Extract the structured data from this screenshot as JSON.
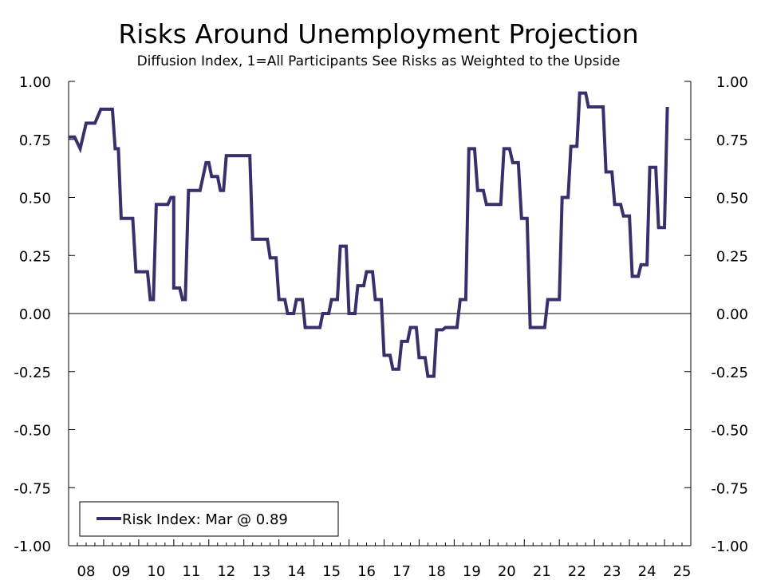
{
  "chart_data": {
    "type": "line",
    "title": "Risks Around Unemployment Projection",
    "subtitle": "Diffusion Index, 1=All Participants See Risks as Weighted to the Upside",
    "xlabel": "",
    "ylabel": "",
    "xlim": [
      2008,
      2025.75
    ],
    "ylim": [
      -1.0,
      1.0
    ],
    "y_ticks": [
      1.0,
      0.75,
      0.5,
      0.25,
      0.0,
      -0.25,
      -0.5,
      -0.75,
      -1.0
    ],
    "y_tick_labels": [
      "1.00",
      "0.75",
      "0.50",
      "0.25",
      "0.00",
      "-0.25",
      "-0.50",
      "-0.75",
      "-1.00"
    ],
    "x_tick_years": [
      2008,
      2009,
      2010,
      2011,
      2012,
      2013,
      2014,
      2015,
      2016,
      2017,
      2018,
      2019,
      2020,
      2021,
      2022,
      2023,
      2024,
      2025
    ],
    "x_tick_labels": [
      "08",
      "09",
      "10",
      "11",
      "12",
      "13",
      "14",
      "15",
      "16",
      "17",
      "18",
      "19",
      "20",
      "21",
      "22",
      "23",
      "24",
      "25"
    ],
    "grid": false,
    "zero_line": true,
    "legend": {
      "position": "bottom-left",
      "label": "Risk Index: Mar @ 0.89"
    },
    "series": [
      {
        "name": "Risk Index",
        "color": "#37306b",
        "points": [
          [
            2008.0,
            0.76
          ],
          [
            2008.17,
            0.76
          ],
          [
            2008.33,
            0.71
          ],
          [
            2008.5,
            0.82
          ],
          [
            2008.75,
            0.82
          ],
          [
            2008.92,
            0.88
          ],
          [
            2009.25,
            0.88
          ],
          [
            2009.33,
            0.71
          ],
          [
            2009.42,
            0.71
          ],
          [
            2009.5,
            0.41
          ],
          [
            2009.83,
            0.41
          ],
          [
            2009.92,
            0.18
          ],
          [
            2010.25,
            0.18
          ],
          [
            2010.33,
            0.06
          ],
          [
            2010.42,
            0.06
          ],
          [
            2010.5,
            0.47
          ],
          [
            2010.83,
            0.47
          ],
          [
            2010.92,
            0.5
          ],
          [
            2011.0,
            0.5
          ],
          [
            2011.0,
            0.11
          ],
          [
            2011.17,
            0.11
          ],
          [
            2011.25,
            0.06
          ],
          [
            2011.33,
            0.06
          ],
          [
            2011.42,
            0.53
          ],
          [
            2011.75,
            0.53
          ],
          [
            2011.92,
            0.65
          ],
          [
            2012.0,
            0.65
          ],
          [
            2012.08,
            0.59
          ],
          [
            2012.25,
            0.59
          ],
          [
            2012.33,
            0.53
          ],
          [
            2012.42,
            0.53
          ],
          [
            2012.5,
            0.68
          ],
          [
            2013.17,
            0.68
          ],
          [
            2013.25,
            0.32
          ],
          [
            2013.67,
            0.32
          ],
          [
            2013.75,
            0.24
          ],
          [
            2013.92,
            0.24
          ],
          [
            2014.0,
            0.06
          ],
          [
            2014.17,
            0.06
          ],
          [
            2014.25,
            0.0
          ],
          [
            2014.42,
            0.0
          ],
          [
            2014.5,
            0.06
          ],
          [
            2014.67,
            0.06
          ],
          [
            2014.75,
            -0.06
          ],
          [
            2015.17,
            -0.06
          ],
          [
            2015.25,
            0.0
          ],
          [
            2015.42,
            0.0
          ],
          [
            2015.5,
            0.06
          ],
          [
            2015.67,
            0.06
          ],
          [
            2015.75,
            0.29
          ],
          [
            2015.92,
            0.29
          ],
          [
            2016.0,
            0.0
          ],
          [
            2016.17,
            0.0
          ],
          [
            2016.25,
            0.12
          ],
          [
            2016.42,
            0.12
          ],
          [
            2016.5,
            0.18
          ],
          [
            2016.67,
            0.18
          ],
          [
            2016.75,
            0.06
          ],
          [
            2016.92,
            0.06
          ],
          [
            2017.0,
            -0.18
          ],
          [
            2017.17,
            -0.18
          ],
          [
            2017.25,
            -0.24
          ],
          [
            2017.42,
            -0.24
          ],
          [
            2017.5,
            -0.12
          ],
          [
            2017.67,
            -0.12
          ],
          [
            2017.75,
            -0.06
          ],
          [
            2017.92,
            -0.06
          ],
          [
            2018.0,
            -0.19
          ],
          [
            2018.17,
            -0.19
          ],
          [
            2018.25,
            -0.27
          ],
          [
            2018.42,
            -0.27
          ],
          [
            2018.5,
            -0.07
          ],
          [
            2018.67,
            -0.07
          ],
          [
            2018.75,
            -0.06
          ],
          [
            2019.08,
            -0.06
          ],
          [
            2019.17,
            0.06
          ],
          [
            2019.33,
            0.06
          ],
          [
            2019.42,
            0.71
          ],
          [
            2019.58,
            0.71
          ],
          [
            2019.67,
            0.53
          ],
          [
            2019.83,
            0.53
          ],
          [
            2019.92,
            0.47
          ],
          [
            2020.33,
            0.47
          ],
          [
            2020.42,
            0.71
          ],
          [
            2020.58,
            0.71
          ],
          [
            2020.67,
            0.65
          ],
          [
            2020.83,
            0.65
          ],
          [
            2020.92,
            0.41
          ],
          [
            2021.08,
            0.41
          ],
          [
            2021.17,
            -0.06
          ],
          [
            2021.58,
            -0.06
          ],
          [
            2021.67,
            0.06
          ],
          [
            2022.0,
            0.06
          ],
          [
            2022.08,
            0.5
          ],
          [
            2022.25,
            0.5
          ],
          [
            2022.33,
            0.72
          ],
          [
            2022.5,
            0.72
          ],
          [
            2022.58,
            0.95
          ],
          [
            2022.75,
            0.95
          ],
          [
            2022.83,
            0.89
          ],
          [
            2023.25,
            0.89
          ],
          [
            2023.33,
            0.61
          ],
          [
            2023.5,
            0.61
          ],
          [
            2023.58,
            0.47
          ],
          [
            2023.75,
            0.47
          ],
          [
            2023.83,
            0.42
          ],
          [
            2024.0,
            0.42
          ],
          [
            2024.08,
            0.16
          ],
          [
            2024.25,
            0.16
          ],
          [
            2024.33,
            0.21
          ],
          [
            2024.5,
            0.21
          ],
          [
            2024.58,
            0.63
          ],
          [
            2024.75,
            0.63
          ],
          [
            2024.83,
            0.37
          ],
          [
            2025.0,
            0.37
          ],
          [
            2025.08,
            0.89
          ]
        ]
      }
    ]
  }
}
